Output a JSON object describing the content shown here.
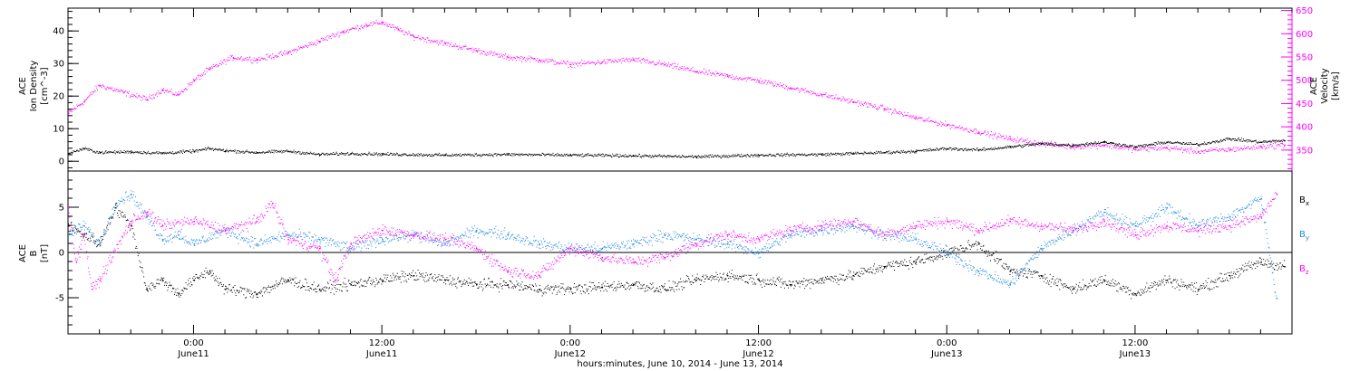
{
  "figure": {
    "xlabel": "hours:minutes, June 10, 2014 - June 13, 2014"
  },
  "chart_data": [
    {
      "type": "scatter",
      "panel": "top",
      "ylabel_left": [
        "ACE",
        "Ion Density",
        "[cm^-3]"
      ],
      "ylabel_right": [
        "ACE",
        "Velocity",
        "[km/s]"
      ],
      "ylim_left": [
        -3,
        47
      ],
      "ylim_right": [
        305,
        655
      ],
      "yticks_left": [
        0,
        10,
        20,
        30,
        40
      ],
      "yticks_right": [
        350,
        400,
        450,
        500,
        550,
        600,
        650
      ],
      "x_unit": "hours since 00:00 June 10, 2014",
      "xlim": [
        16.0,
        93.6
      ],
      "colors": {
        "density": "#000000",
        "velocity": "#ff00ff"
      },
      "series": [
        {
          "name": "Ion Density",
          "axis": "left",
          "x": [
            16.0,
            17.0,
            18.0,
            20.0,
            22.0,
            24.0,
            25.0,
            26.0,
            28.0,
            30.0,
            32.0,
            34.0,
            36.0,
            40.0,
            44.0,
            48.0,
            52.0,
            56.0,
            60.0,
            64.0,
            66.0,
            68.0,
            70.0,
            72.0,
            74.0,
            76.0,
            78.0,
            80.0,
            82.0,
            84.0,
            86.0,
            88.0,
            90.0,
            92.0,
            93.5
          ],
          "y": [
            2.5,
            4.0,
            2.8,
            3.0,
            2.6,
            3.2,
            4.0,
            3.4,
            2.8,
            3.2,
            2.2,
            2.5,
            2.3,
            2.0,
            2.2,
            2.0,
            1.8,
            1.5,
            2.0,
            2.2,
            2.5,
            2.8,
            3.2,
            4.0,
            3.6,
            4.5,
            5.5,
            5.0,
            6.0,
            4.5,
            6.0,
            5.2,
            7.0,
            6.0,
            6.5
          ]
        },
        {
          "name": "Velocity",
          "axis": "right",
          "x": [
            16.0,
            17.0,
            18.0,
            19.5,
            21.0,
            22.0,
            23.0,
            24.0,
            25.0,
            26.5,
            28.0,
            30.0,
            32.0,
            33.5,
            35.0,
            36.0,
            37.0,
            38.0,
            40.0,
            42.0,
            44.0,
            46.0,
            48.0,
            50.0,
            52.0,
            54.0,
            56.0,
            58.0,
            60.0,
            62.0,
            64.0,
            66.0,
            68.0,
            70.0,
            72.0,
            74.0,
            76.0,
            78.0,
            80.0,
            82.0,
            84.0,
            86.0,
            88.0,
            90.0,
            92.0,
            93.5
          ],
          "y": [
            430,
            455,
            490,
            475,
            460,
            480,
            470,
            500,
            525,
            550,
            545,
            560,
            585,
            605,
            620,
            625,
            610,
            595,
            580,
            565,
            550,
            545,
            535,
            540,
            545,
            535,
            520,
            510,
            500,
            485,
            470,
            455,
            440,
            420,
            405,
            390,
            375,
            365,
            358,
            362,
            352,
            356,
            348,
            352,
            358,
            362
          ]
        }
      ]
    },
    {
      "type": "scatter",
      "panel": "bottom",
      "ylabel_left": [
        "ACE",
        "B",
        "[nT]"
      ],
      "ylim": [
        -9,
        9
      ],
      "yticks": [
        -5,
        0,
        5
      ],
      "x_unit": "hours since 00:00 June 10, 2014",
      "xlim": [
        16.0,
        93.6
      ],
      "colors": {
        "Bx": "#000000",
        "By": "#1e88e5",
        "Bz": "#ff00ff"
      },
      "legend": [
        "Bx",
        "By",
        "Bz"
      ],
      "legend_position": "right",
      "series": [
        {
          "name": "Bx",
          "x": [
            16.0,
            17.0,
            18.0,
            19.0,
            20.0,
            21.0,
            22.0,
            23.0,
            24.0,
            25.0,
            26.0,
            28.0,
            30.0,
            32.0,
            34.0,
            36.0,
            38.0,
            40.0,
            42.0,
            44.0,
            46.0,
            48.0,
            50.0,
            52.0,
            54.0,
            56.0,
            58.0,
            60.0,
            62.0,
            64.0,
            66.0,
            68.0,
            70.0,
            72.0,
            74.0,
            76.0,
            78.0,
            80.0,
            82.0,
            84.0,
            86.0,
            88.0,
            90.0,
            92.0,
            93.5
          ],
          "y": [
            3.0,
            2.0,
            1.0,
            5.0,
            3.0,
            -4.0,
            -3.0,
            -4.5,
            -3.0,
            -2.0,
            -4.0,
            -4.5,
            -3.0,
            -4.0,
            -3.5,
            -3.0,
            -2.5,
            -3.0,
            -3.5,
            -3.5,
            -4.0,
            -4.0,
            -3.8,
            -3.5,
            -4.0,
            -3.0,
            -2.5,
            -3.0,
            -3.5,
            -3.0,
            -2.5,
            -1.5,
            -1.0,
            0.0,
            1.0,
            -2.0,
            -2.5,
            -4.0,
            -3.0,
            -4.5,
            -3.0,
            -4.0,
            -2.5,
            -1.0,
            -1.5
          ]
        },
        {
          "name": "By",
          "x": [
            16.0,
            17.0,
            18.0,
            19.0,
            20.0,
            21.0,
            22.0,
            23.0,
            24.0,
            26.0,
            28.0,
            30.0,
            32.0,
            34.0,
            36.0,
            38.0,
            40.0,
            42.0,
            44.0,
            46.0,
            48.0,
            50.0,
            52.0,
            54.0,
            56.0,
            58.0,
            60.0,
            62.0,
            64.0,
            66.0,
            68.0,
            70.0,
            72.0,
            74.0,
            76.0,
            78.0,
            80.0,
            82.0,
            84.0,
            86.0,
            88.0,
            90.0,
            92.0,
            93.0
          ],
          "y": [
            2.0,
            3.0,
            1.0,
            5.5,
            6.5,
            4.0,
            1.5,
            2.0,
            1.0,
            2.5,
            1.0,
            2.0,
            1.5,
            0.5,
            1.5,
            2.0,
            1.0,
            2.5,
            2.0,
            1.0,
            0.5,
            0.5,
            1.0,
            2.0,
            1.5,
            1.0,
            0.0,
            2.0,
            2.5,
            3.0,
            2.0,
            1.5,
            0.0,
            -2.0,
            -3.5,
            0.5,
            2.5,
            4.5,
            3.0,
            5.0,
            3.0,
            4.0,
            6.0,
            -5.0
          ]
        },
        {
          "name": "Bz",
          "x": [
            16.0,
            16.5,
            17.0,
            17.5,
            18.0,
            20.0,
            21.0,
            22.0,
            24.0,
            26.0,
            28.0,
            29.0,
            30.0,
            32.0,
            33.0,
            34.0,
            36.0,
            38.0,
            40.0,
            42.0,
            44.0,
            46.0,
            48.0,
            50.0,
            52.0,
            54.0,
            56.0,
            58.0,
            60.0,
            62.0,
            64.0,
            66.0,
            68.0,
            70.0,
            72.0,
            74.0,
            76.0,
            78.0,
            80.0,
            82.0,
            84.0,
            86.0,
            88.0,
            90.0,
            92.0,
            93.0
          ],
          "y": [
            5.0,
            -1.0,
            2.0,
            -4.0,
            -3.0,
            3.5,
            4.5,
            3.0,
            3.5,
            2.5,
            3.5,
            5.5,
            1.5,
            0.5,
            -3.0,
            1.0,
            2.5,
            2.0,
            1.5,
            0.5,
            -2.0,
            -2.5,
            0.5,
            -0.5,
            -1.0,
            -0.5,
            1.0,
            2.0,
            1.5,
            2.5,
            3.0,
            3.5,
            2.0,
            3.0,
            3.5,
            2.5,
            3.5,
            3.0,
            2.5,
            3.5,
            2.0,
            3.0,
            2.5,
            3.0,
            4.0,
            6.5
          ]
        }
      ]
    }
  ],
  "x_axis": {
    "ticks": [
      {
        "hours": 24,
        "time": "0:00",
        "day": "June11"
      },
      {
        "hours": 36,
        "time": "12:00",
        "day": "June11"
      },
      {
        "hours": 48,
        "time": "0:00",
        "day": "June12"
      },
      {
        "hours": 60,
        "time": "12:00",
        "day": "June12"
      },
      {
        "hours": 72,
        "time": "0:00",
        "day": "June13"
      },
      {
        "hours": 84,
        "time": "12:00",
        "day": "June13"
      }
    ],
    "range_hours": [
      16.0,
      94.0
    ]
  },
  "legend": {
    "bx": "B",
    "bx_sub": "x",
    "by": "B",
    "by_sub": "y",
    "bz": "B",
    "bz_sub": "z"
  }
}
